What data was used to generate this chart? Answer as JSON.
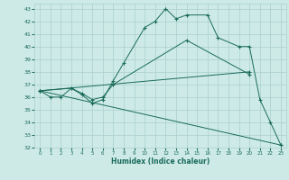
{
  "line1": {
    "x": [
      0,
      1,
      2,
      3,
      4,
      5,
      6,
      7,
      8,
      10,
      11,
      12,
      13,
      14,
      16,
      17,
      19,
      20,
      21,
      22,
      23
    ],
    "y": [
      36.5,
      36.0,
      36.0,
      36.7,
      36.2,
      35.5,
      35.8,
      37.3,
      38.7,
      41.5,
      42.0,
      43.0,
      42.2,
      42.5,
      42.5,
      40.7,
      40.0,
      40.0,
      35.8,
      34.0,
      32.2
    ]
  },
  "line2": {
    "x": [
      0,
      3,
      4,
      5,
      6,
      7,
      14,
      20
    ],
    "y": [
      36.5,
      36.7,
      36.3,
      35.8,
      36.0,
      37.0,
      40.5,
      37.8
    ]
  },
  "line3": {
    "x": [
      0,
      20
    ],
    "y": [
      36.5,
      38.0
    ]
  },
  "line4": {
    "x": [
      0,
      23
    ],
    "y": [
      36.5,
      32.2
    ]
  },
  "color": "#1a6b5a",
  "bg_color": "#cdeae7",
  "grid_color": "#aacfcc",
  "xlabel": "Humidex (Indice chaleur)",
  "xlim": [
    -0.5,
    23.5
  ],
  "ylim": [
    32,
    43.4
  ],
  "yticks": [
    32,
    33,
    34,
    35,
    36,
    37,
    38,
    39,
    40,
    41,
    42,
    43
  ],
  "xticks": [
    0,
    1,
    2,
    3,
    4,
    5,
    6,
    7,
    8,
    9,
    10,
    11,
    12,
    13,
    14,
    15,
    16,
    17,
    18,
    19,
    20,
    21,
    22,
    23
  ]
}
